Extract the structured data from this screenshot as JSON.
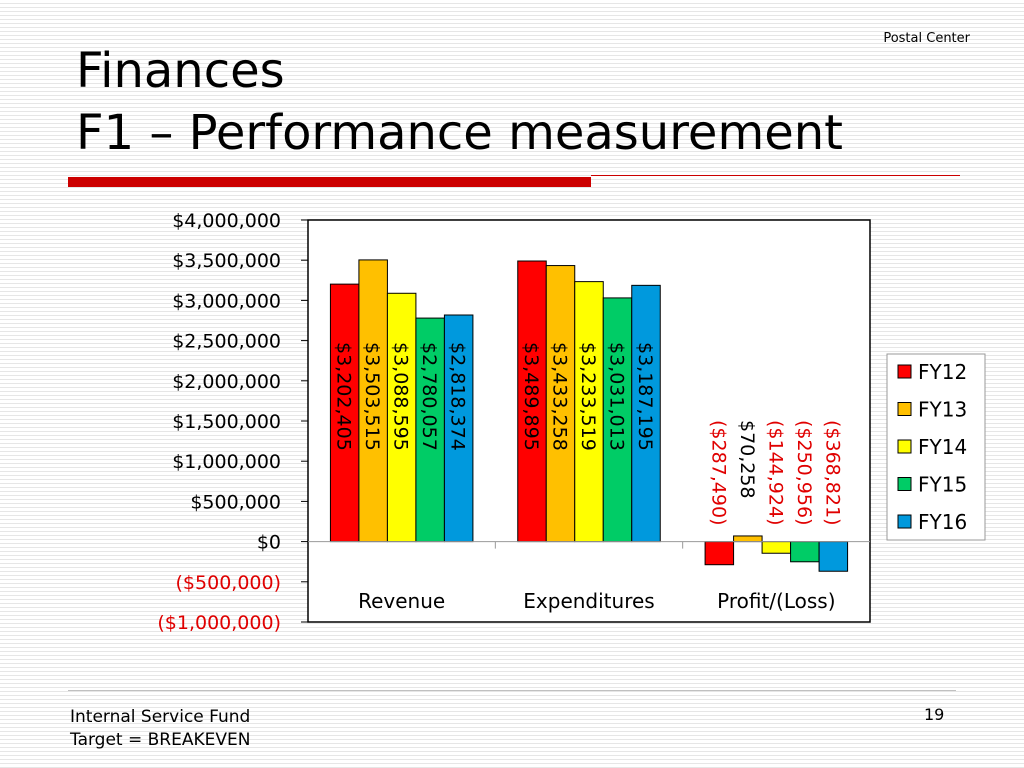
{
  "header": {
    "label": "Postal Center"
  },
  "title": {
    "line1": "Finances",
    "line2": "F1 – Performance measurement"
  },
  "footer": {
    "note_line1": "Internal Service Fund",
    "note_line2": "Target = BREAKEVEN",
    "page_number": "19"
  },
  "colors": {
    "FY12": "#ff0000",
    "FY13": "#ffc000",
    "FY14": "#ffff00",
    "FY15": "#00cc66",
    "FY16": "#0099dd",
    "negative_text": "#e00000",
    "accent_rule": "#cc0000"
  },
  "chart_data": {
    "type": "bar",
    "title": "",
    "xlabel": "",
    "ylabel": "",
    "categories": [
      "Revenue",
      "Expenditures",
      "Profit/(Loss)"
    ],
    "series": [
      {
        "name": "FY12",
        "values": [
          3202405,
          3489895,
          -287490
        ],
        "labels": [
          "$3,202,405",
          "$3,489,895",
          "($287,490)"
        ]
      },
      {
        "name": "FY13",
        "values": [
          3503515,
          3433258,
          70258
        ],
        "labels": [
          "$3,503,515",
          "$3,433,258",
          "$70,258"
        ]
      },
      {
        "name": "FY14",
        "values": [
          3088595,
          3233519,
          -144924
        ],
        "labels": [
          "$3,088,595",
          "$3,233,519",
          "($144,924)"
        ]
      },
      {
        "name": "FY15",
        "values": [
          2780057,
          3031013,
          -250956
        ],
        "labels": [
          "$2,780,057",
          "$3,031,013",
          "($250,956)"
        ]
      },
      {
        "name": "FY16",
        "values": [
          2818374,
          3187195,
          -368821
        ],
        "labels": [
          "$2,818,374",
          "$3,187,195",
          "($368,821)"
        ]
      }
    ],
    "yticks": [
      4000000,
      3500000,
      3000000,
      2500000,
      2000000,
      1500000,
      1000000,
      500000,
      0,
      -500000,
      -1000000
    ],
    "ytick_labels": [
      "$4,000,000",
      "$3,500,000",
      "$3,000,000",
      "$2,500,000",
      "$2,000,000",
      "$1,500,000",
      "$1,000,000",
      "$500,000",
      "$0",
      "($500,000)",
      "($1,000,000)"
    ],
    "ylim": [
      -1000000,
      4000000
    ],
    "grid": false,
    "legend_position": "right"
  }
}
